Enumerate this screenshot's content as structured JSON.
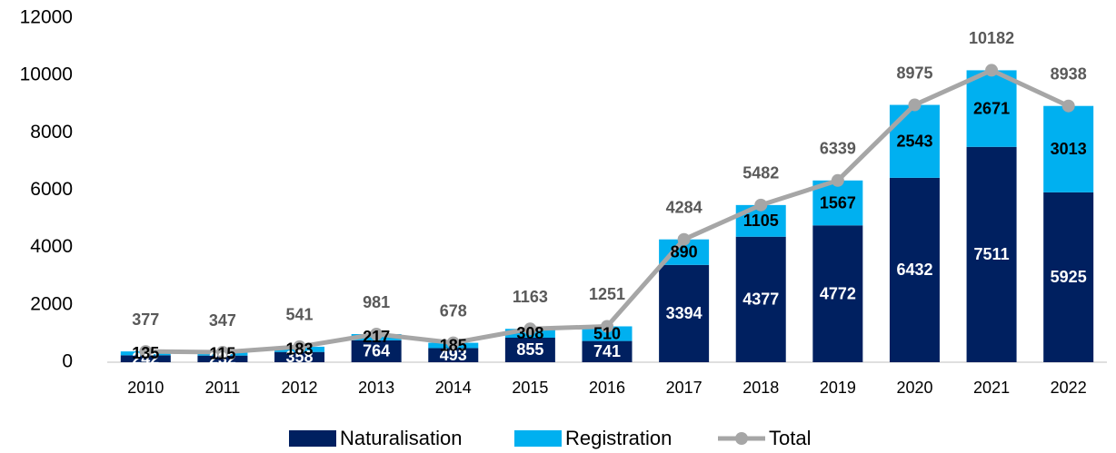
{
  "chart_data": {
    "type": "bar",
    "stacked": true,
    "categories": [
      "2010",
      "2011",
      "2012",
      "2013",
      "2014",
      "2015",
      "2016",
      "2017",
      "2018",
      "2019",
      "2020",
      "2021",
      "2022"
    ],
    "series": [
      {
        "name": "Naturalisation",
        "type": "bar",
        "color": "#002060",
        "label_color": "#ffffff",
        "values": [
          242,
          232,
          358,
          764,
          493,
          855,
          741,
          3394,
          4377,
          4772,
          6432,
          7511,
          5925
        ]
      },
      {
        "name": "Registration",
        "type": "bar",
        "color": "#00b0f0",
        "label_color": "#000000",
        "values": [
          135,
          115,
          183,
          217,
          185,
          308,
          510,
          890,
          1105,
          1567,
          2543,
          2671,
          3013
        ]
      },
      {
        "name": "Total",
        "type": "line",
        "color": "#a6a6a6",
        "label_color": "#595959",
        "values": [
          377,
          347,
          541,
          981,
          678,
          1163,
          1251,
          4284,
          5482,
          6339,
          8975,
          10182,
          8938
        ]
      }
    ],
    "ylim": [
      0,
      12000
    ],
    "yticks": [
      0,
      2000,
      4000,
      6000,
      8000,
      10000,
      12000
    ],
    "grid": false,
    "legend": "bottom"
  }
}
